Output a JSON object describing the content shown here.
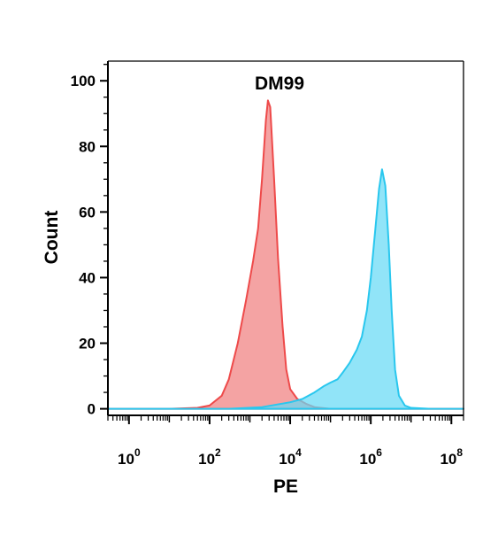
{
  "chart_data": {
    "type": "area",
    "title": "DM99",
    "xlabel": "PE",
    "ylabel": "Count",
    "x_scale": "log10",
    "xlim": [
      0.3,
      200000000
    ],
    "ylim": [
      -2,
      106
    ],
    "x_ticks": [
      {
        "value": 1,
        "base": "10",
        "exp": "0"
      },
      {
        "value": 100,
        "base": "10",
        "exp": "2"
      },
      {
        "value": 10000,
        "base": "10",
        "exp": "4"
      },
      {
        "value": 1000000,
        "base": "10",
        "exp": "6"
      },
      {
        "value": 100000000,
        "base": "10",
        "exp": "8"
      }
    ],
    "y_ticks": [
      "0",
      "20",
      "40",
      "60",
      "80",
      "100"
    ],
    "grid": false,
    "legend": "none",
    "series": [
      {
        "color": "#f08080",
        "stroke": "#ee4a4a",
        "points": [
          [
            0.3,
            0
          ],
          [
            10,
            0
          ],
          [
            50,
            0.3
          ],
          [
            100,
            1
          ],
          [
            200,
            4
          ],
          [
            300,
            9
          ],
          [
            500,
            20
          ],
          [
            800,
            33
          ],
          [
            1200,
            45
          ],
          [
            1600,
            55
          ],
          [
            2000,
            70
          ],
          [
            2500,
            88
          ],
          [
            2800,
            94
          ],
          [
            3200,
            92
          ],
          [
            4000,
            70
          ],
          [
            5000,
            46
          ],
          [
            6500,
            25
          ],
          [
            8000,
            12
          ],
          [
            10000,
            6
          ],
          [
            15000,
            3
          ],
          [
            25000,
            1.5
          ],
          [
            40000,
            0.5
          ],
          [
            100000,
            0
          ],
          [
            200000000,
            0
          ]
        ]
      },
      {
        "color": "#66d9f5",
        "stroke": "#29c7ee",
        "points": [
          [
            0.3,
            0
          ],
          [
            300,
            0
          ],
          [
            2000,
            0.5
          ],
          [
            10000,
            2
          ],
          [
            20000,
            3
          ],
          [
            40000,
            5
          ],
          [
            70000,
            7
          ],
          [
            100000,
            8
          ],
          [
            150000,
            9
          ],
          [
            200000,
            11
          ],
          [
            300000,
            14
          ],
          [
            450000,
            18
          ],
          [
            600000,
            22
          ],
          [
            800000,
            30
          ],
          [
            1000000,
            40
          ],
          [
            1300000,
            55
          ],
          [
            1600000,
            67
          ],
          [
            1900000,
            73
          ],
          [
            2300000,
            68
          ],
          [
            2800000,
            50
          ],
          [
            3300000,
            30
          ],
          [
            4000000,
            12
          ],
          [
            5000000,
            4
          ],
          [
            7000000,
            1
          ],
          [
            10000000,
            0.3
          ],
          [
            30000000,
            0
          ],
          [
            200000000,
            0
          ]
        ]
      }
    ]
  }
}
